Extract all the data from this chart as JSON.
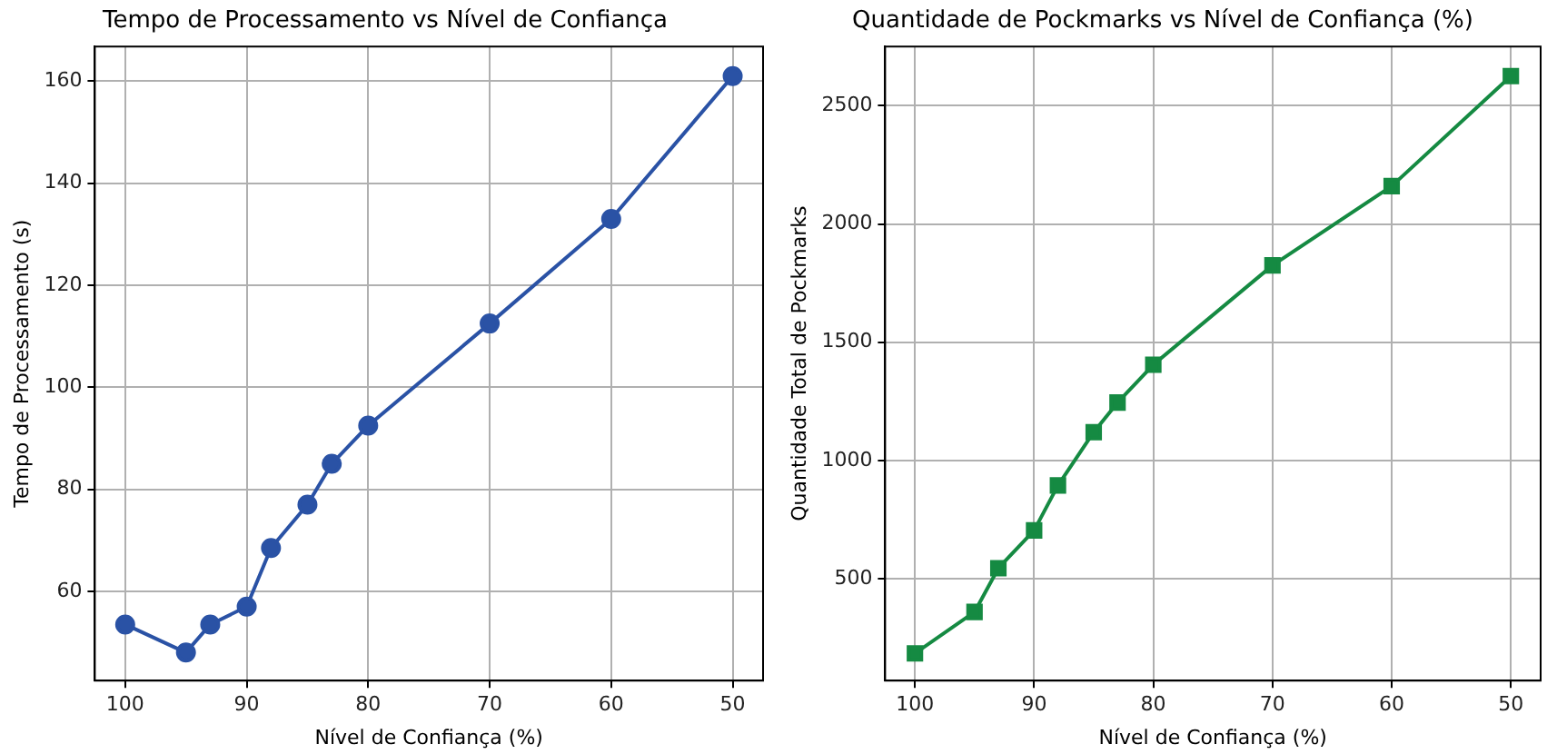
{
  "chart_data": [
    {
      "type": "line",
      "title": "Tempo de Processamento vs Nível de Confiança",
      "xlabel": "Nível de Confiança (%)",
      "ylabel": "Tempo de Processamento (s)",
      "x": [
        100,
        95,
        93,
        90,
        88,
        85,
        83,
        80,
        70,
        60,
        50
      ],
      "series": [
        {
          "color": "#2a52a5",
          "values": [
            53.5,
            48,
            53.5,
            57,
            68.5,
            77,
            85,
            92.5,
            112.5,
            133,
            161
          ]
        }
      ],
      "xlim": [
        102.5,
        47.5
      ],
      "xticks": [
        100,
        90,
        80,
        70,
        60,
        50
      ],
      "ylim": [
        42.5,
        166.8
      ],
      "yticks": [
        60,
        80,
        100,
        120,
        140,
        160
      ],
      "grid": true,
      "marker": "circle",
      "line_style": "solid"
    },
    {
      "type": "line",
      "title": "Quantidade de Pockmarks vs Nível de Confiança (%)",
      "xlabel": "Nível de Confiança (%)",
      "ylabel": "Quantidade Total de Pockmarks",
      "x": [
        100,
        95,
        93,
        90,
        88,
        85,
        83,
        80,
        70,
        60,
        50
      ],
      "series": [
        {
          "color": "#158a42",
          "values": [
            185,
            360,
            545,
            705,
            895,
            1120,
            1245,
            1405,
            1825,
            2160,
            2625
          ]
        }
      ],
      "xlim": [
        102.5,
        47.5
      ],
      "xticks": [
        100,
        90,
        80,
        70,
        60,
        50
      ],
      "ylim": [
        70,
        2750
      ],
      "yticks": [
        500,
        1000,
        1500,
        2000,
        2500
      ],
      "grid": true,
      "marker": "square",
      "line_style": "solid"
    }
  ]
}
